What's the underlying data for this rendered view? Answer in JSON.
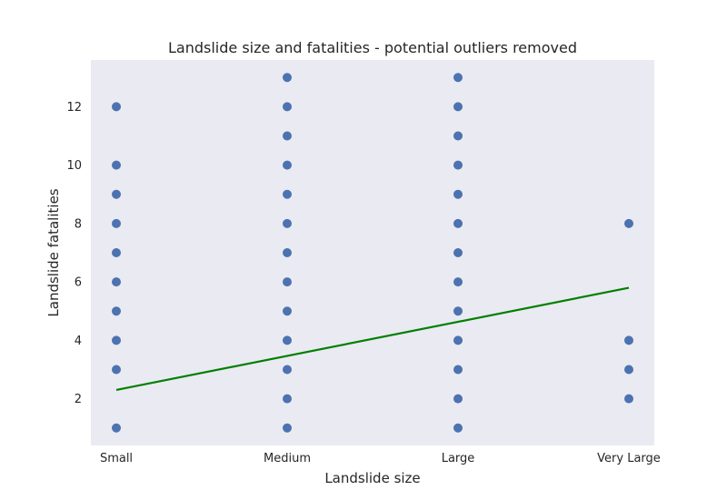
{
  "chart_data": {
    "type": "scatter",
    "title": "Landslide size and fatalities - potential outliers removed",
    "xlabel": "Landslide size",
    "ylabel": "Landslide fatalities",
    "categories": [
      "Small",
      "Medium",
      "Large",
      "Very Large"
    ],
    "ylim": [
      0.4,
      13.6
    ],
    "yticks": [
      2,
      4,
      6,
      8,
      10,
      12
    ],
    "grid": false,
    "colors": {
      "plot_background": "#eaeaf2",
      "points": "#4c72b0",
      "trend_line": "#008000"
    },
    "series": [
      {
        "kind": "points",
        "points": [
          {
            "x": "Small",
            "y": 1
          },
          {
            "x": "Small",
            "y": 3
          },
          {
            "x": "Small",
            "y": 4
          },
          {
            "x": "Small",
            "y": 5
          },
          {
            "x": "Small",
            "y": 6
          },
          {
            "x": "Small",
            "y": 7
          },
          {
            "x": "Small",
            "y": 8
          },
          {
            "x": "Small",
            "y": 9
          },
          {
            "x": "Small",
            "y": 10
          },
          {
            "x": "Small",
            "y": 12
          },
          {
            "x": "Medium",
            "y": 1
          },
          {
            "x": "Medium",
            "y": 2
          },
          {
            "x": "Medium",
            "y": 3
          },
          {
            "x": "Medium",
            "y": 4
          },
          {
            "x": "Medium",
            "y": 5
          },
          {
            "x": "Medium",
            "y": 6
          },
          {
            "x": "Medium",
            "y": 7
          },
          {
            "x": "Medium",
            "y": 8
          },
          {
            "x": "Medium",
            "y": 9
          },
          {
            "x": "Medium",
            "y": 10
          },
          {
            "x": "Medium",
            "y": 11
          },
          {
            "x": "Medium",
            "y": 12
          },
          {
            "x": "Medium",
            "y": 13
          },
          {
            "x": "Large",
            "y": 1
          },
          {
            "x": "Large",
            "y": 2
          },
          {
            "x": "Large",
            "y": 3
          },
          {
            "x": "Large",
            "y": 4
          },
          {
            "x": "Large",
            "y": 5
          },
          {
            "x": "Large",
            "y": 6
          },
          {
            "x": "Large",
            "y": 7
          },
          {
            "x": "Large",
            "y": 8
          },
          {
            "x": "Large",
            "y": 9
          },
          {
            "x": "Large",
            "y": 10
          },
          {
            "x": "Large",
            "y": 11
          },
          {
            "x": "Large",
            "y": 12
          },
          {
            "x": "Large",
            "y": 13
          },
          {
            "x": "Very Large",
            "y": 2
          },
          {
            "x": "Very Large",
            "y": 3
          },
          {
            "x": "Very Large",
            "y": 4
          },
          {
            "x": "Very Large",
            "y": 8
          }
        ]
      },
      {
        "kind": "trend_line",
        "points": [
          {
            "x": "Small",
            "y": 2.3
          },
          {
            "x": "Very Large",
            "y": 5.8
          }
        ]
      }
    ]
  }
}
